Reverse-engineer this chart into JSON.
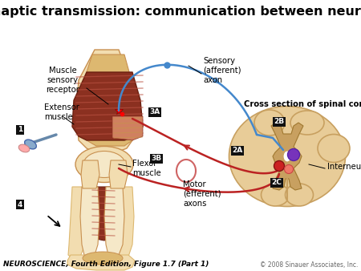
{
  "title": "Synaptic transmission: communication between neurons",
  "title_fontsize": 11.5,
  "title_fontweight": "bold",
  "footer_left": "NEUROSCIENCE, Fourth Edition, Figure 1.7 (Part 1)",
  "footer_right": "© 2008 Sinauer Associates, Inc.",
  "footer_fontsize": 6.5,
  "bg_color": "#ffffff",
  "labels": {
    "extensor_muscle": "Extensor\nmuscle",
    "muscle_sensory": "Muscle\nsensory\nreceptor",
    "flexor_muscle": "Flexor\nmuscle",
    "sensory_axon": "Sensory\n(afferent)\naxon",
    "motor_axons": "Motor\n(efferent)\naxons",
    "cross_section": "Cross section of spinal cord",
    "interneuron": "Interneuron"
  },
  "colors": {
    "blue_axon": "#4488cc",
    "red_axon": "#bb2222",
    "red_axon_light": "#dd8888",
    "skin_light": "#f2ddb0",
    "skin_mid": "#ddb870",
    "skin_dark": "#c89050",
    "bone_light": "#f5e8c8",
    "muscle_dark": "#8b3020",
    "muscle_mid": "#b85040",
    "muscle_light": "#d08060",
    "spinal_outer": "#e8cc98",
    "spinal_gray": "#c8a060",
    "spinal_inner": "#d4b070",
    "label_box": "#111111",
    "label_text": "#ffffff",
    "purple_synapse": "#7733bb",
    "red_synapse1": "#cc2222",
    "red_synapse2": "#ee7766"
  }
}
